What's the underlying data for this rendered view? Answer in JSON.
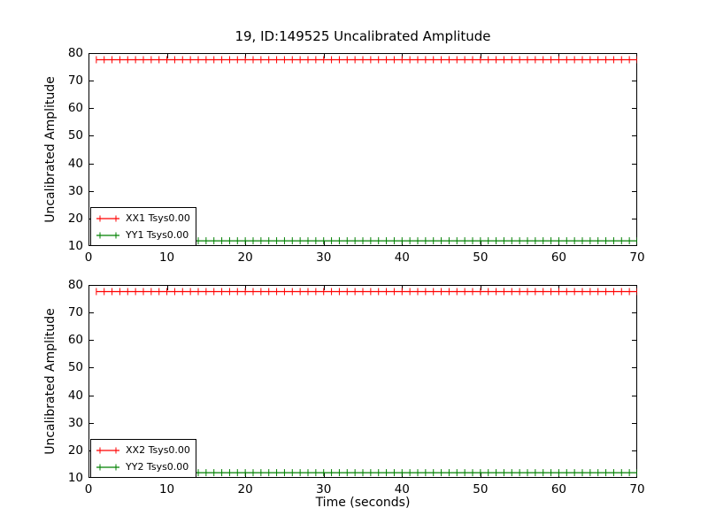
{
  "figure": {
    "title": "19, ID:149525 Uncalibrated Amplitude",
    "background_color": "#ffffff",
    "text_color": "#000000",
    "spine_color": "#000000"
  },
  "chart_data": [
    {
      "type": "line",
      "subplot": "top",
      "title": "19, ID:149525 Uncalibrated Amplitude",
      "xlabel": "",
      "ylabel": "Uncalibrated Amplitude",
      "xlim": [
        0,
        70
      ],
      "ylim": [
        10,
        80
      ],
      "xticks": [
        0,
        10,
        20,
        30,
        40,
        50,
        60,
        70
      ],
      "yticks": [
        10,
        20,
        30,
        40,
        50,
        60,
        70,
        80
      ],
      "grid": false,
      "tick_direction": "in",
      "legend_position": "lower-left",
      "series": [
        {
          "label": "XX1 Tsys0.00",
          "color": "#ff0000",
          "marker": "plus",
          "x_start": 1,
          "x_end": 70,
          "x_step": 1,
          "y_constant": 77.6
        },
        {
          "label": "YY1 Tsys0.00",
          "color": "#008000",
          "marker": "plus",
          "x_start": 1,
          "x_end": 70,
          "x_step": 1,
          "y_constant": 11.9
        }
      ]
    },
    {
      "type": "line",
      "subplot": "bottom",
      "title": "",
      "xlabel": "Time (seconds)",
      "ylabel": "Uncalibrated Amplitude",
      "xlim": [
        0,
        70
      ],
      "ylim": [
        10,
        80
      ],
      "xticks": [
        0,
        10,
        20,
        30,
        40,
        50,
        60,
        70
      ],
      "yticks": [
        10,
        20,
        30,
        40,
        50,
        60,
        70,
        80
      ],
      "grid": false,
      "tick_direction": "in",
      "legend_position": "lower-left",
      "series": [
        {
          "label": "XX2 Tsys0.00",
          "color": "#ff0000",
          "marker": "plus",
          "x_start": 1,
          "x_end": 70,
          "x_step": 1,
          "y_constant": 77.6
        },
        {
          "label": "YY2 Tsys0.00",
          "color": "#008000",
          "marker": "plus",
          "x_start": 1,
          "x_end": 70,
          "x_step": 1,
          "y_constant": 11.9
        }
      ]
    }
  ]
}
